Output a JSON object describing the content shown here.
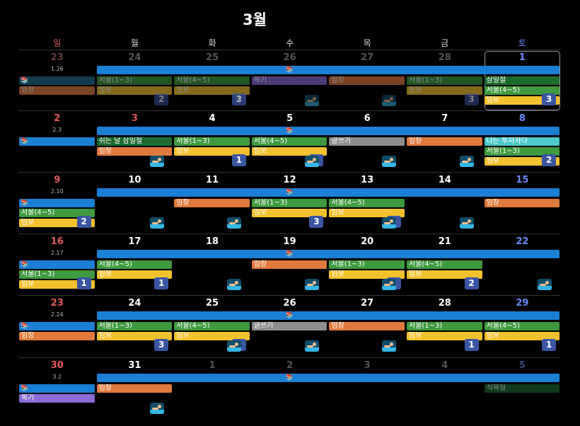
{
  "title": "3월",
  "weekdays": [
    "일",
    "월",
    "화",
    "수",
    "목",
    "금",
    "토"
  ],
  "colors": {
    "blue": "#1b7fd6",
    "teal": "#1f6f8f",
    "green": "#3f9a3f",
    "dark_green": "#1e6b30",
    "orange": "#e07a3c",
    "yellow": "#f2c12e",
    "purple": "#8a6dd6",
    "gray": "#8e8e8e",
    "cyan": "#4cc9c9",
    "badge": "#3b55a3"
  },
  "icons": [
    "books-icon",
    "swimmer-icon"
  ],
  "weeks": [
    {
      "days": [
        {
          "n": "23",
          "sub": "1.26",
          "out": true
        },
        {
          "n": "24",
          "out": true
        },
        {
          "n": "25",
          "out": true
        },
        {
          "n": "26",
          "out": true
        },
        {
          "n": "27",
          "out": true
        },
        {
          "n": "28",
          "out": true
        },
        {
          "n": "1",
          "today": true
        }
      ],
      "events": [
        {
          "s": 0,
          "e": 0,
          "row": 1,
          "c": "teal",
          "t": "",
          "book": true,
          "dim": true
        },
        {
          "s": 0,
          "e": 0,
          "row": 2,
          "c": "orange",
          "t": "임장",
          "dim": true
        },
        {
          "s": 1,
          "e": 1,
          "row": 1,
          "c": "green",
          "t": "서울(1~3)",
          "dim": true
        },
        {
          "s": 1,
          "e": 1,
          "row": 2,
          "c": "yellow",
          "t": "임보",
          "dim": true
        },
        {
          "s": 2,
          "e": 2,
          "row": 1,
          "c": "green",
          "t": "서울(4~5)",
          "dim": true
        },
        {
          "s": 2,
          "e": 2,
          "row": 2,
          "c": "yellow",
          "t": "임보",
          "dim": true
        },
        {
          "s": 3,
          "e": 3,
          "row": 1,
          "c": "purple",
          "t": "복기",
          "dim": true
        },
        {
          "s": 4,
          "e": 4,
          "row": 1,
          "c": "orange",
          "t": "임장",
          "dim": true
        },
        {
          "s": 5,
          "e": 5,
          "row": 1,
          "c": "green",
          "t": "서울(1~3)",
          "dim": true
        },
        {
          "s": 5,
          "e": 5,
          "row": 2,
          "c": "yellow",
          "t": "임보",
          "dim": true
        },
        {
          "s": 6,
          "e": 6,
          "row": 1,
          "c": "dark_green",
          "t": "삼일절"
        },
        {
          "s": 6,
          "e": 6,
          "row": 2,
          "c": "green",
          "t": "서울(4~5)"
        },
        {
          "s": 6,
          "e": 6,
          "row": 3,
          "c": "yellow",
          "t": "임보"
        }
      ],
      "badges": [
        {
          "col": 1,
          "v": "2",
          "dim": true
        },
        {
          "col": 2,
          "v": "2",
          "dim": true
        },
        {
          "col": 2,
          "v": "3",
          "dim": true,
          "swim": true
        },
        {
          "col": 5,
          "v": "3",
          "dim": true
        },
        {
          "col": 6,
          "v": "3"
        }
      ],
      "swims": [
        {
          "col": 3,
          "dim": true
        },
        {
          "col": 4,
          "dim": true
        }
      ]
    },
    {
      "days": [
        {
          "n": "2",
          "sub": "2.3"
        },
        {
          "n": "3",
          "red": true
        },
        {
          "n": "4"
        },
        {
          "n": "5"
        },
        {
          "n": "6"
        },
        {
          "n": "7"
        },
        {
          "n": "8"
        }
      ],
      "events": [
        {
          "s": 0,
          "e": 0,
          "row": 1,
          "c": "blue",
          "t": "",
          "book": true
        },
        {
          "s": 1,
          "e": 1,
          "row": 1,
          "c": "dark_green",
          "t": "쉬는 날 삼일절"
        },
        {
          "s": 1,
          "e": 1,
          "row": 2,
          "c": "orange",
          "t": "임장"
        },
        {
          "s": 2,
          "e": 2,
          "row": 1,
          "c": "green",
          "t": "서울(1~3)"
        },
        {
          "s": 2,
          "e": 2,
          "row": 2,
          "c": "yellow",
          "t": "임보"
        },
        {
          "s": 3,
          "e": 3,
          "row": 1,
          "c": "green",
          "t": "서울(4~5)"
        },
        {
          "s": 3,
          "e": 3,
          "row": 2,
          "c": "yellow",
          "t": "임보"
        },
        {
          "s": 4,
          "e": 4,
          "row": 1,
          "c": "gray",
          "t": "글쓰기"
        },
        {
          "s": 5,
          "e": 5,
          "row": 1,
          "c": "orange",
          "t": "임장"
        },
        {
          "s": 6,
          "e": 6,
          "row": 1,
          "c": "cyan",
          "t": "나는 투자자다"
        },
        {
          "s": 6,
          "e": 6,
          "row": 2,
          "c": "green",
          "t": "서울(1~3)"
        },
        {
          "s": 6,
          "e": 6,
          "row": 3,
          "c": "yellow",
          "t": "임보"
        }
      ],
      "badges": [
        {
          "col": 2,
          "v": "1"
        },
        {
          "col": 3,
          "v": "1"
        },
        {
          "col": 6,
          "v": "2"
        }
      ],
      "swims": [
        {
          "col": 1
        },
        {
          "col": 3
        },
        {
          "col": 4
        },
        {
          "col": 5
        }
      ]
    },
    {
      "days": [
        {
          "n": "9",
          "sub": "2.10"
        },
        {
          "n": "10"
        },
        {
          "n": "11"
        },
        {
          "n": "12"
        },
        {
          "n": "13"
        },
        {
          "n": "14"
        },
        {
          "n": "15"
        }
      ],
      "events": [
        {
          "s": 0,
          "e": 0,
          "row": 1,
          "c": "blue",
          "t": "",
          "book": true
        },
        {
          "s": 0,
          "e": 0,
          "row": 2,
          "c": "green",
          "t": "서울(4~5)"
        },
        {
          "s": 0,
          "e": 0,
          "row": 3,
          "c": "yellow",
          "t": "임보"
        },
        {
          "s": 2,
          "e": 2,
          "row": 1,
          "c": "orange",
          "t": "임장"
        },
        {
          "s": 3,
          "e": 3,
          "row": 1,
          "c": "green",
          "t": "서울(1~3)"
        },
        {
          "s": 3,
          "e": 3,
          "row": 2,
          "c": "yellow",
          "t": "임보"
        },
        {
          "s": 4,
          "e": 4,
          "row": 1,
          "c": "green",
          "t": "서울(4~5)"
        },
        {
          "s": 4,
          "e": 4,
          "row": 2,
          "c": "yellow",
          "t": "임보"
        },
        {
          "s": 6,
          "e": 6,
          "row": 1,
          "c": "orange",
          "t": "임장"
        }
      ],
      "badges": [
        {
          "col": 0,
          "v": "2"
        },
        {
          "col": 3,
          "v": "3"
        },
        {
          "col": 4,
          "v": "3"
        }
      ],
      "swims": [
        {
          "col": 1
        },
        {
          "col": 2
        },
        {
          "col": 4
        },
        {
          "col": 5
        }
      ]
    },
    {
      "days": [
        {
          "n": "16",
          "sub": "2.17"
        },
        {
          "n": "17"
        },
        {
          "n": "18"
        },
        {
          "n": "19"
        },
        {
          "n": "20"
        },
        {
          "n": "21"
        },
        {
          "n": "22"
        }
      ],
      "events": [
        {
          "s": 0,
          "e": 0,
          "row": 1,
          "c": "blue",
          "t": "",
          "book": true
        },
        {
          "s": 0,
          "e": 0,
          "row": 2,
          "c": "green",
          "t": "서울(1~3)"
        },
        {
          "s": 0,
          "e": 0,
          "row": 3,
          "c": "yellow",
          "t": "임보"
        },
        {
          "s": 1,
          "e": 1,
          "row": 1,
          "c": "green",
          "t": "서울(4~5)"
        },
        {
          "s": 1,
          "e": 1,
          "row": 2,
          "c": "yellow",
          "t": "임보"
        },
        {
          "s": 3,
          "e": 3,
          "row": 1,
          "c": "orange",
          "t": "임장"
        },
        {
          "s": 4,
          "e": 4,
          "row": 1,
          "c": "green",
          "t": "서울(1~3)"
        },
        {
          "s": 4,
          "e": 4,
          "row": 2,
          "c": "yellow",
          "t": "임보"
        },
        {
          "s": 5,
          "e": 5,
          "row": 1,
          "c": "green",
          "t": "서울(4~5)"
        },
        {
          "s": 5,
          "e": 5,
          "row": 2,
          "c": "yellow",
          "t": "임보"
        }
      ],
      "badges": [
        {
          "col": 0,
          "v": "1"
        },
        {
          "col": 1,
          "v": "1"
        },
        {
          "col": 4,
          "v": "2"
        },
        {
          "col": 5,
          "v": "2"
        }
      ],
      "swims": [
        {
          "col": 2
        },
        {
          "col": 3
        },
        {
          "col": 4
        },
        {
          "col": 6
        }
      ]
    },
    {
      "days": [
        {
          "n": "23",
          "sub": "2.24"
        },
        {
          "n": "24"
        },
        {
          "n": "25"
        },
        {
          "n": "26"
        },
        {
          "n": "27"
        },
        {
          "n": "28"
        },
        {
          "n": "29"
        }
      ],
      "events": [
        {
          "s": 0,
          "e": 0,
          "row": 1,
          "c": "blue",
          "t": "",
          "book": true
        },
        {
          "s": 0,
          "e": 0,
          "row": 2,
          "c": "orange",
          "t": "임장"
        },
        {
          "s": 1,
          "e": 1,
          "row": 1,
          "c": "green",
          "t": "서울(1~3)"
        },
        {
          "s": 1,
          "e": 1,
          "row": 2,
          "c": "yellow",
          "t": "임보"
        },
        {
          "s": 2,
          "e": 2,
          "row": 1,
          "c": "green",
          "t": "서울(4~5)"
        },
        {
          "s": 2,
          "e": 2,
          "row": 2,
          "c": "yellow",
          "t": "임보"
        },
        {
          "s": 3,
          "e": 3,
          "row": 1,
          "c": "gray",
          "t": "글쓰기"
        },
        {
          "s": 4,
          "e": 4,
          "row": 1,
          "c": "orange",
          "t": "임장"
        },
        {
          "s": 5,
          "e": 5,
          "row": 1,
          "c": "green",
          "t": "서울(1~3)"
        },
        {
          "s": 5,
          "e": 5,
          "row": 2,
          "c": "yellow",
          "t": "임보"
        },
        {
          "s": 6,
          "e": 6,
          "row": 1,
          "c": "green",
          "t": "서울(4~5)"
        },
        {
          "s": 6,
          "e": 6,
          "row": 2,
          "c": "yellow",
          "t": "임보"
        }
      ],
      "badges": [
        {
          "col": 1,
          "v": "3"
        },
        {
          "col": 2,
          "v": "3"
        },
        {
          "col": 5,
          "v": "1"
        },
        {
          "col": 6,
          "v": "1"
        }
      ],
      "swims": [
        {
          "col": 2
        },
        {
          "col": 3
        },
        {
          "col": 4
        }
      ]
    },
    {
      "days": [
        {
          "n": "30",
          "sub": "3.2"
        },
        {
          "n": "31"
        },
        {
          "n": "1",
          "out": true
        },
        {
          "n": "2",
          "out": true
        },
        {
          "n": "3",
          "out": true
        },
        {
          "n": "4",
          "out": true
        },
        {
          "n": "5",
          "out": true
        }
      ],
      "events": [
        {
          "s": 0,
          "e": 0,
          "row": 1,
          "c": "blue",
          "t": "",
          "book": true
        },
        {
          "s": 0,
          "e": 0,
          "row": 2,
          "c": "purple",
          "t": "복기"
        },
        {
          "s": 1,
          "e": 1,
          "row": 1,
          "c": "orange",
          "t": "임장"
        },
        {
          "s": 6,
          "e": 6,
          "row": 1,
          "c": "dark_green",
          "t": "식목일",
          "dim": true
        }
      ],
      "badges": [],
      "swims": [
        {
          "col": 1
        }
      ]
    }
  ]
}
